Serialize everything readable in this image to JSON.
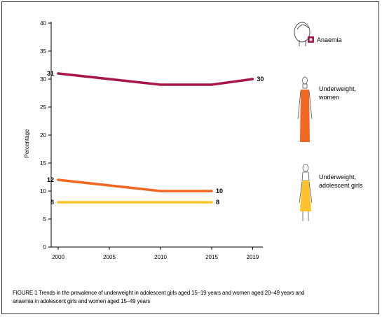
{
  "chart_data": {
    "type": "line",
    "ylabel": "Percentage",
    "ylim": [
      0,
      40
    ],
    "yticks": [
      0,
      5,
      10,
      15,
      20,
      25,
      30,
      35,
      40
    ],
    "x": [
      2000,
      2005,
      2010,
      2015,
      2019
    ],
    "xtick_labels": [
      "2000",
      "2005",
      "2010",
      "2015",
      "2019"
    ],
    "series": [
      {
        "name": "Anaemia",
        "color": "#a8174c",
        "points": [
          [
            2000,
            31
          ],
          [
            2010,
            29
          ],
          [
            2015,
            29
          ],
          [
            2019,
            30
          ]
        ],
        "start_label": "31",
        "end_label": "30"
      },
      {
        "name": "Underweight, women",
        "color": "#f26722",
        "points": [
          [
            2000,
            12
          ],
          [
            2010,
            10
          ],
          [
            2015,
            10
          ]
        ],
        "start_label": "12",
        "end_label": "10"
      },
      {
        "name": "Underweight, adolescent girls",
        "color": "#fdc22c",
        "points": [
          [
            2000,
            8
          ],
          [
            2015,
            8
          ]
        ],
        "start_label": "8",
        "end_label": "8"
      }
    ],
    "legend": [
      {
        "text_lines": [
          "Anaemia"
        ],
        "icon": "head-with-blood-drop-icon",
        "color": "#a8174c"
      },
      {
        "text_lines": [
          "Underweight,",
          "women"
        ],
        "icon": "woman-figure-icon",
        "color": "#f26722"
      },
      {
        "text_lines": [
          "Underweight,",
          "adolescent girls"
        ],
        "icon": "girl-figure-icon",
        "color": "#fdc22c"
      }
    ],
    "legend_placement": "right",
    "grid": false
  },
  "caption": {
    "line1": "FIGURE 1 Trends in the prevalence of underweight in adolescent girls aged 15–19 years and women aged 20–49 years and",
    "line2": "anaemia in adolescent girls and women aged 15–49 years"
  }
}
